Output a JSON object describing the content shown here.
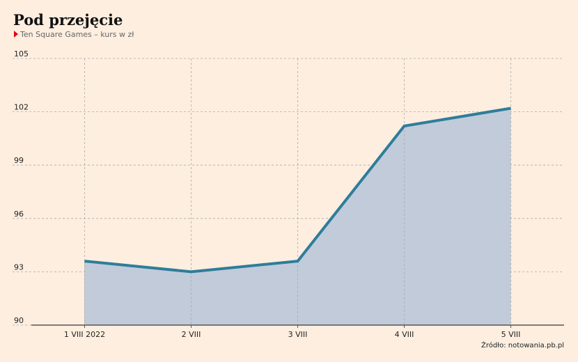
{
  "chart_data": {
    "type": "area",
    "title": "Pod przejęcie",
    "subtitle": "Ten Square Games – kurs w zł",
    "source": "Źródło: notowania.pb.pl",
    "categories": [
      "1 VIII 2022",
      "2 VIII",
      "3 VIII",
      "4 VIII",
      "5 VIII"
    ],
    "values": [
      93.6,
      93.0,
      93.6,
      101.2,
      102.2
    ],
    "color": "#2e7d9a",
    "fill_color": "#bec8d9",
    "ylim": [
      90,
      105
    ],
    "yticks": [
      90,
      93,
      96,
      99,
      102,
      105
    ],
    "grid": true
  }
}
